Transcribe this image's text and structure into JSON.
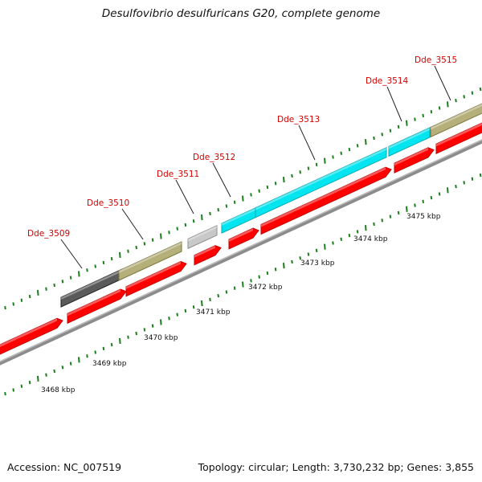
{
  "title": "Desulfovibrio desulfuricans G20, complete genome",
  "footer": {
    "accession": "Accession: NC_007519",
    "summary": "Topology: circular; Length: 3,730,232 bp; Genes: 3,855"
  },
  "colors": {
    "gene_label": "#d40000",
    "cds": "#ff0000",
    "backbone": "#8c8c8c",
    "ticks": "#1a7f1a",
    "cyan_feature": "#00e5f0",
    "olive_feature": "#b5b07a",
    "dark_feature": "#5a5a5a",
    "light_feature": "#c8c8c8"
  },
  "genes": [
    {
      "name": "Dde_3509"
    },
    {
      "name": "Dde_3510"
    },
    {
      "name": "Dde_3511"
    },
    {
      "name": "Dde_3512"
    },
    {
      "name": "Dde_3513"
    },
    {
      "name": "Dde_3514"
    },
    {
      "name": "Dde_3515"
    }
  ],
  "scale_labels": [
    "3468 kbp",
    "3469 kbp",
    "3470 kbp",
    "3471 kbp",
    "3472 kbp",
    "3473 kbp",
    "3474 kbp",
    "3475 kbp"
  ]
}
